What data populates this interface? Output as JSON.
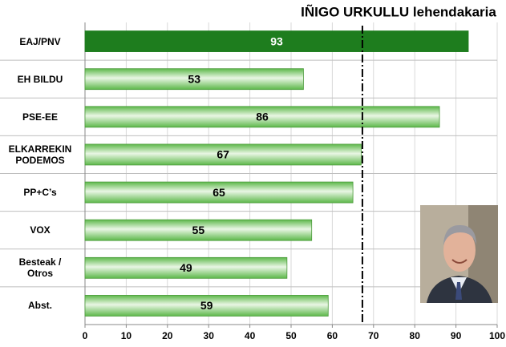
{
  "chart_data": {
    "type": "hbar",
    "title": "IÑIGO URKULLU lehendakaria",
    "categories": [
      "EAJ/PNV",
      "EH BILDU",
      "PSE-EE",
      "ELKARREKIN PODEMOS",
      "PP+C’s",
      "VOX",
      "Besteak / Otros",
      "Abst."
    ],
    "values": [
      93,
      53,
      86,
      67,
      65,
      55,
      49,
      59
    ],
    "colors": [
      "#1e7d1e",
      "#5db84a",
      "#5db84a",
      "#5db84a",
      "#5db84a",
      "#5db84a",
      "#5db84a",
      "#5db84a"
    ],
    "xlim": [
      0,
      100
    ],
    "xticks": [
      0,
      10,
      20,
      30,
      40,
      50,
      60,
      70,
      80,
      90,
      100
    ],
    "reference_line": 67.3,
    "grid": true
  }
}
